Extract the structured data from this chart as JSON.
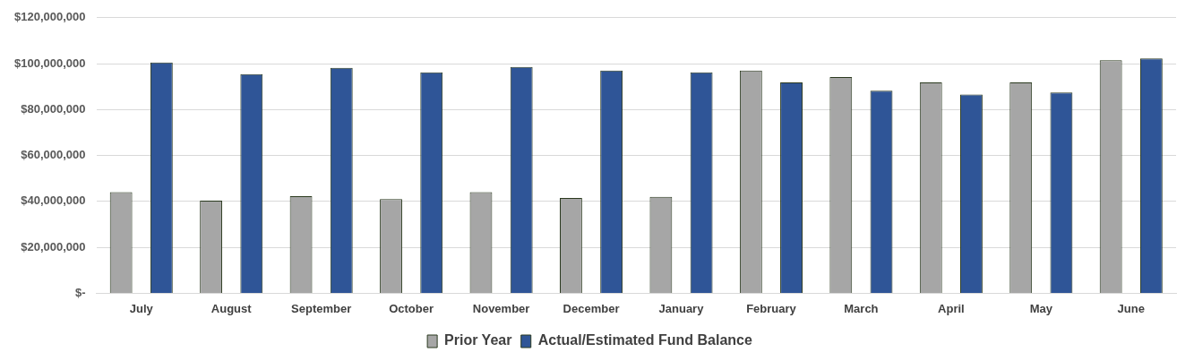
{
  "chart_data": {
    "type": "bar",
    "categories": [
      "July",
      "August",
      "September",
      "October",
      "November",
      "December",
      "January",
      "February",
      "March",
      "April",
      "May",
      "June"
    ],
    "series": [
      {
        "name": "Prior Year",
        "color": "#a6a6a6",
        "values": [
          44000000,
          40300000,
          42300000,
          41000000,
          44000000,
          41500000,
          42000000,
          97000000,
          94200000,
          91800000,
          91800000,
          101500000
        ]
      },
      {
        "name": "Actual/Estimated Fund Balance",
        "color": "#2f5597",
        "values": [
          100500000,
          95400000,
          98200000,
          96200000,
          98600000,
          97000000,
          96200000,
          91800000,
          88200000,
          86600000,
          87400000,
          102300000
        ]
      }
    ],
    "ylim": [
      0,
      120000000
    ],
    "yticks": [
      {
        "value": 0,
        "label": "$-"
      },
      {
        "value": 20000000,
        "label": "$20,000,000"
      },
      {
        "value": 40000000,
        "label": "$40,000,000"
      },
      {
        "value": 60000000,
        "label": "$60,000,000"
      },
      {
        "value": 80000000,
        "label": "$80,000,000"
      },
      {
        "value": 100000000,
        "label": "$100,000,000"
      },
      {
        "value": 120000000,
        "label": "$120,000,000"
      }
    ],
    "grid": "y",
    "legend": "bottom"
  }
}
